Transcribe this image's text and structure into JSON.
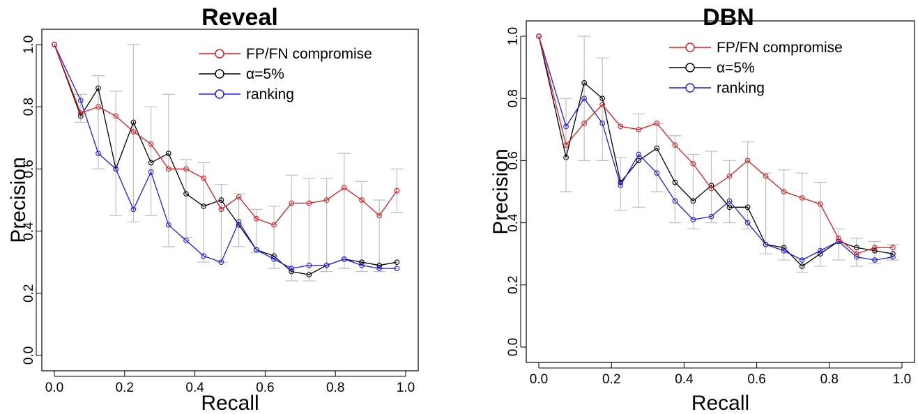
{
  "chart_data": [
    {
      "type": "line",
      "title": "Reveal",
      "xlabel": "Recall",
      "ylabel": "Precision",
      "xlim": [
        0,
        1
      ],
      "ylim": [
        0,
        1
      ],
      "xticks": [
        "0.0",
        "0.2",
        "0.4",
        "0.6",
        "0.8",
        "1.0"
      ],
      "yticks": [
        "0.0",
        "0.2",
        "0.4",
        "0.6",
        "0.8",
        "1.0"
      ],
      "legend_position": "top-right",
      "series": [
        {
          "name": "FP/FN compromise",
          "color": "#e8191c",
          "x": [
            0,
            0.075,
            0.125,
            0.175,
            0.225,
            0.275,
            0.325,
            0.375,
            0.425,
            0.475,
            0.525,
            0.575,
            0.625,
            0.675,
            0.725,
            0.775,
            0.825,
            0.875,
            0.925,
            0.975
          ],
          "y": [
            1.0,
            0.78,
            0.8,
            0.77,
            0.72,
            0.68,
            0.6,
            0.6,
            0.57,
            0.47,
            0.51,
            0.44,
            0.42,
            0.49,
            0.49,
            0.5,
            0.54,
            0.5,
            0.45,
            0.53
          ]
        },
        {
          "name": "α=5%",
          "color": "#000000",
          "x": [
            0,
            0.075,
            0.125,
            0.175,
            0.225,
            0.275,
            0.325,
            0.375,
            0.425,
            0.475,
            0.525,
            0.575,
            0.625,
            0.675,
            0.725,
            0.775,
            0.825,
            0.875,
            0.925,
            0.975
          ],
          "y": [
            1.0,
            0.77,
            0.86,
            0.6,
            0.75,
            0.62,
            0.65,
            0.52,
            0.48,
            0.5,
            0.42,
            0.34,
            0.32,
            0.27,
            0.26,
            0.29,
            0.31,
            0.3,
            0.29,
            0.3
          ]
        },
        {
          "name": "ranking",
          "color": "#1a1aff",
          "x": [
            0,
            0.075,
            0.125,
            0.175,
            0.225,
            0.275,
            0.325,
            0.375,
            0.425,
            0.475,
            0.525,
            0.575,
            0.625,
            0.675,
            0.725,
            0.775,
            0.825,
            0.875,
            0.925,
            0.975
          ],
          "y": [
            1.0,
            0.82,
            0.65,
            0.6,
            0.47,
            0.59,
            0.42,
            0.37,
            0.32,
            0.3,
            0.43,
            0.34,
            0.31,
            0.28,
            0.29,
            0.29,
            0.31,
            0.29,
            0.28,
            0.28
          ]
        }
      ],
      "error_bars": {
        "color": "#bfbfbf",
        "x": [
          0.075,
          0.125,
          0.175,
          0.225,
          0.275,
          0.325,
          0.375,
          0.425,
          0.475,
          0.525,
          0.575,
          0.625,
          0.675,
          0.725,
          0.775,
          0.825,
          0.875,
          0.925,
          0.975
        ],
        "low": [
          0.75,
          0.6,
          0.45,
          0.43,
          0.45,
          0.35,
          0.38,
          0.3,
          0.3,
          0.35,
          0.33,
          0.28,
          0.24,
          0.24,
          0.27,
          0.28,
          0.27,
          0.27,
          0.46
        ],
        "high": [
          0.84,
          0.9,
          0.85,
          1.0,
          0.8,
          0.84,
          0.63,
          0.62,
          0.55,
          0.52,
          0.47,
          0.48,
          0.58,
          0.57,
          0.57,
          0.65,
          0.56,
          0.5,
          0.6
        ]
      }
    },
    {
      "type": "line",
      "title": "DBN",
      "xlabel": "Recall",
      "ylabel": "Precision",
      "xlim": [
        0,
        1
      ],
      "ylim": [
        0,
        1
      ],
      "xticks": [
        "0.0",
        "0.2",
        "0.4",
        "0.6",
        "0.8",
        "1.0"
      ],
      "yticks": [
        "0.0",
        "0.2",
        "0.4",
        "0.6",
        "0.8",
        "1.0"
      ],
      "legend_position": "top-right",
      "series": [
        {
          "name": "FP/FN compromise",
          "color": "#e8191c",
          "x": [
            0,
            0.075,
            0.125,
            0.175,
            0.225,
            0.275,
            0.325,
            0.375,
            0.425,
            0.475,
            0.525,
            0.575,
            0.625,
            0.675,
            0.725,
            0.775,
            0.825,
            0.875,
            0.925,
            0.975
          ],
          "y": [
            1.0,
            0.65,
            0.72,
            0.78,
            0.71,
            0.7,
            0.72,
            0.65,
            0.59,
            0.51,
            0.55,
            0.6,
            0.55,
            0.5,
            0.48,
            0.46,
            0.35,
            0.3,
            0.32,
            0.32
          ]
        },
        {
          "name": "α=5%",
          "color": "#000000",
          "x": [
            0,
            0.075,
            0.125,
            0.175,
            0.225,
            0.275,
            0.325,
            0.375,
            0.425,
            0.475,
            0.525,
            0.575,
            0.625,
            0.675,
            0.725,
            0.775,
            0.825,
            0.875,
            0.925,
            0.975
          ],
          "y": [
            1.0,
            0.61,
            0.85,
            0.8,
            0.53,
            0.6,
            0.64,
            0.53,
            0.47,
            0.52,
            0.45,
            0.45,
            0.33,
            0.32,
            0.26,
            0.3,
            0.34,
            0.32,
            0.31,
            0.3
          ]
        },
        {
          "name": "ranking",
          "color": "#1a1aff",
          "x": [
            0,
            0.075,
            0.125,
            0.175,
            0.225,
            0.275,
            0.325,
            0.375,
            0.425,
            0.475,
            0.525,
            0.575,
            0.625,
            0.675,
            0.725,
            0.775,
            0.825,
            0.875,
            0.925,
            0.975
          ],
          "y": [
            1.0,
            0.71,
            0.8,
            0.72,
            0.52,
            0.62,
            0.56,
            0.47,
            0.41,
            0.42,
            0.47,
            0.4,
            0.33,
            0.31,
            0.28,
            0.31,
            0.34,
            0.29,
            0.28,
            0.29
          ]
        }
      ],
      "error_bars": {
        "color": "#bfbfbf",
        "x": [
          0.075,
          0.125,
          0.175,
          0.225,
          0.275,
          0.325,
          0.375,
          0.425,
          0.475,
          0.525,
          0.575,
          0.625,
          0.675,
          0.725,
          0.775,
          0.825,
          0.875,
          0.925,
          0.975
        ],
        "low": [
          0.5,
          0.6,
          0.6,
          0.44,
          0.45,
          0.5,
          0.4,
          0.38,
          0.4,
          0.4,
          0.38,
          0.3,
          0.28,
          0.24,
          0.26,
          0.28,
          0.26,
          0.27,
          0.28
        ],
        "high": [
          0.8,
          1.0,
          0.93,
          0.61,
          0.75,
          0.72,
          0.68,
          0.62,
          0.63,
          0.6,
          0.66,
          0.56,
          0.57,
          0.56,
          0.53,
          0.38,
          0.35,
          0.34,
          0.33
        ]
      }
    }
  ]
}
